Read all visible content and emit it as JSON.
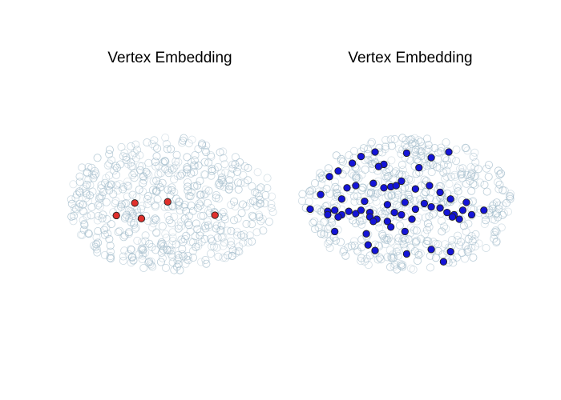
{
  "colors": {
    "background_points": "#9db8c8",
    "highlight_left": "#e0302c",
    "highlight_right": "#1414d8",
    "point_edge": "#222222"
  },
  "chart_data": [
    {
      "type": "scatter",
      "title": "Vertex Embedding",
      "axes_visible": false,
      "highlight_color": "#e0302c",
      "highlighted_points": [
        {
          "x": 0.3,
          "y": 0.31
        },
        {
          "x": 0.55,
          "y": 0.27
        },
        {
          "x": 0.16,
          "y": 0.72
        },
        {
          "x": 0.35,
          "y": 0.82
        },
        {
          "x": 0.91,
          "y": 0.71
        }
      ]
    },
    {
      "type": "scatter",
      "title": "Vertex Embedding",
      "axes_visible": false,
      "highlight_color": "#1414d8",
      "highlighted_points": [
        {
          "x": 0.29,
          "y": 0.04
        },
        {
          "x": 0.37,
          "y": 0.0
        },
        {
          "x": 0.55,
          "y": 0.01
        },
        {
          "x": 0.16,
          "y": 0.17
        },
        {
          "x": 0.24,
          "y": 0.1
        },
        {
          "x": 0.42,
          "y": 0.11
        },
        {
          "x": 0.39,
          "y": 0.13
        },
        {
          "x": 0.62,
          "y": 0.14
        },
        {
          "x": 0.69,
          "y": 0.05
        },
        {
          "x": 0.79,
          "y": 0.0
        },
        {
          "x": 0.11,
          "y": 0.22
        },
        {
          "x": 0.21,
          "y": 0.32
        },
        {
          "x": 0.26,
          "y": 0.3
        },
        {
          "x": 0.36,
          "y": 0.28
        },
        {
          "x": 0.42,
          "y": 0.32
        },
        {
          "x": 0.46,
          "y": 0.31
        },
        {
          "x": 0.49,
          "y": 0.3
        },
        {
          "x": 0.52,
          "y": 0.26
        },
        {
          "x": 0.6,
          "y": 0.33
        },
        {
          "x": 0.68,
          "y": 0.3
        },
        {
          "x": 0.74,
          "y": 0.36
        },
        {
          "x": 0.06,
          "y": 0.38
        },
        {
          "x": 0.18,
          "y": 0.42
        },
        {
          "x": 0.31,
          "y": 0.44
        },
        {
          "x": 0.44,
          "y": 0.47
        },
        {
          "x": 0.54,
          "y": 0.45
        },
        {
          "x": 0.65,
          "y": 0.46
        },
        {
          "x": 0.69,
          "y": 0.49
        },
        {
          "x": 0.8,
          "y": 0.42
        },
        {
          "x": 0.89,
          "y": 0.45
        },
        {
          "x": 0.0,
          "y": 0.51
        },
        {
          "x": 0.1,
          "y": 0.53
        },
        {
          "x": 0.14,
          "y": 0.52
        },
        {
          "x": 0.18,
          "y": 0.56
        },
        {
          "x": 0.22,
          "y": 0.53
        },
        {
          "x": 0.26,
          "y": 0.55
        },
        {
          "x": 0.29,
          "y": 0.52
        },
        {
          "x": 0.34,
          "y": 0.54
        },
        {
          "x": 0.38,
          "y": 0.6
        },
        {
          "x": 0.48,
          "y": 0.54
        },
        {
          "x": 0.52,
          "y": 0.56
        },
        {
          "x": 0.6,
          "y": 0.51
        },
        {
          "x": 0.74,
          "y": 0.5
        },
        {
          "x": 0.78,
          "y": 0.54
        },
        {
          "x": 0.82,
          "y": 0.56
        },
        {
          "x": 0.87,
          "y": 0.52
        },
        {
          "x": 0.99,
          "y": 0.52
        },
        {
          "x": 0.1,
          "y": 0.56
        },
        {
          "x": 0.16,
          "y": 0.58
        },
        {
          "x": 0.34,
          "y": 0.58
        },
        {
          "x": 0.36,
          "y": 0.62
        },
        {
          "x": 0.44,
          "y": 0.62
        },
        {
          "x": 0.58,
          "y": 0.6
        },
        {
          "x": 0.85,
          "y": 0.6
        },
        {
          "x": 0.81,
          "y": 0.58
        },
        {
          "x": 0.14,
          "y": 0.71
        },
        {
          "x": 0.32,
          "y": 0.73
        },
        {
          "x": 0.46,
          "y": 0.67
        },
        {
          "x": 0.54,
          "y": 0.71
        },
        {
          "x": 0.92,
          "y": 0.56
        },
        {
          "x": 0.33,
          "y": 0.83
        },
        {
          "x": 0.37,
          "y": 0.88
        },
        {
          "x": 0.55,
          "y": 0.91
        },
        {
          "x": 0.69,
          "y": 0.87
        },
        {
          "x": 0.76,
          "y": 0.98
        },
        {
          "x": 0.8,
          "y": 0.89
        }
      ]
    }
  ]
}
